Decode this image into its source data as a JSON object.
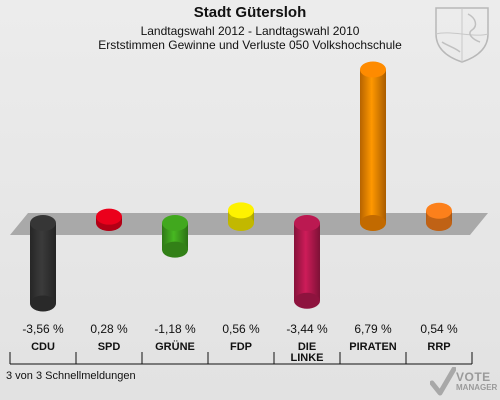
{
  "header": {
    "title": "Stadt Gütersloh",
    "subtitle": "Landtagswahl 2012 - Landtagswahl 2010",
    "subsubtitle": "Erststimmen Gewinne und Verluste 050 Volkshochschule"
  },
  "footer": {
    "status": "3 von 3 Schnellmeldungen",
    "brand_line1": "VOTE",
    "brand_line2": "MANAGER"
  },
  "chart_data": {
    "type": "bar",
    "categories": [
      "CDU",
      "SPD",
      "GRÜNE",
      "FDP",
      "DIE LINKE",
      "PIRATEN",
      "RRP"
    ],
    "values": [
      -3.56,
      0.28,
      -1.18,
      0.56,
      -3.44,
      6.79,
      0.54
    ],
    "value_labels": [
      "-3,56 %",
      "0,28 %",
      "-1,18 %",
      "0,56 %",
      "-3,44 %",
      "6,79 %",
      "0,54 %"
    ],
    "colors": [
      "#333333",
      "#e0001a",
      "#3ea01d",
      "#f2e600",
      "#b2184d",
      "#f28400",
      "#f07a1a"
    ],
    "ylim": [
      -4.5,
      7.5
    ]
  }
}
